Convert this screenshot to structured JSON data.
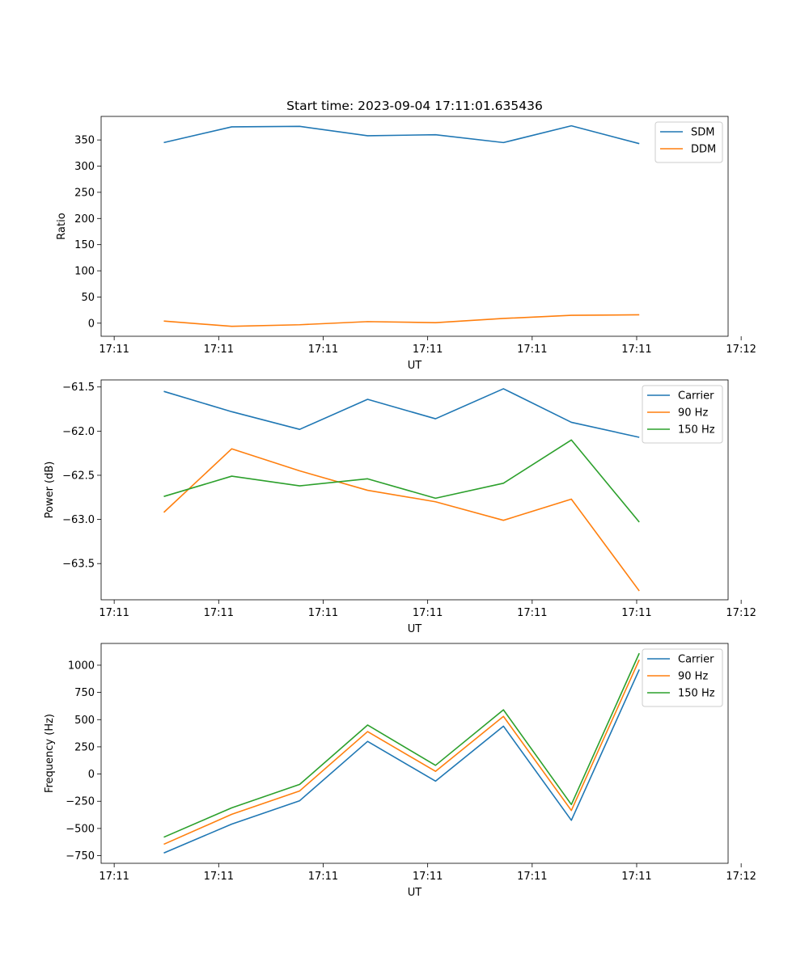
{
  "chart_data": [
    {
      "type": "line",
      "title": "Start time: 2023-09-04 17:11:01.635436",
      "xlabel": "UT",
      "ylabel": "Ratio",
      "xlim": [
        -0.25,
        5.75
      ],
      "x_ticks": [
        {
          "value": -0.125,
          "label": "17:11"
        },
        {
          "value": 0.875,
          "label": "17:11"
        },
        {
          "value": 1.875,
          "label": "17:11"
        },
        {
          "value": 2.875,
          "label": "17:11"
        },
        {
          "value": 3.875,
          "label": "17:11"
        },
        {
          "value": 4.875,
          "label": "17:11"
        },
        {
          "value": 5.875,
          "label": "17:12"
        }
      ],
      "ylim": [
        -25,
        395
      ],
      "y_ticks": [
        0,
        50,
        100,
        150,
        200,
        250,
        300,
        350
      ],
      "x": [
        0.35,
        1.0,
        1.65,
        2.3,
        2.95,
        3.6,
        4.25,
        4.9
      ],
      "series": [
        {
          "name": "SDM",
          "color": "#1f77b4",
          "values": [
            345,
            375,
            376,
            358,
            360,
            345,
            377,
            343
          ]
        },
        {
          "name": "DDM",
          "color": "#ff7f0e",
          "values": [
            4,
            -6,
            -3,
            3,
            1,
            9,
            15,
            16
          ]
        }
      ],
      "legend": "top-right"
    },
    {
      "type": "line",
      "title": "",
      "xlabel": "UT",
      "ylabel": "Power (dB)",
      "xlim": [
        -0.25,
        5.75
      ],
      "x_ticks": [
        {
          "value": -0.125,
          "label": "17:11"
        },
        {
          "value": 0.875,
          "label": "17:11"
        },
        {
          "value": 1.875,
          "label": "17:11"
        },
        {
          "value": 2.875,
          "label": "17:11"
        },
        {
          "value": 3.875,
          "label": "17:11"
        },
        {
          "value": 4.875,
          "label": "17:11"
        },
        {
          "value": 5.875,
          "label": "17:12"
        }
      ],
      "ylim": [
        -63.91,
        -61.42
      ],
      "y_ticks": [
        -63.5,
        -63.0,
        -62.5,
        -62.0,
        -61.5
      ],
      "y_tick_labels": [
        "−63.5",
        "−63.0",
        "−62.5",
        "−62.0",
        "−61.5"
      ],
      "x": [
        0.35,
        1.0,
        1.65,
        2.3,
        2.95,
        3.6,
        4.25,
        4.9
      ],
      "series": [
        {
          "name": "Carrier",
          "color": "#1f77b4",
          "values": [
            -61.55,
            -61.78,
            -61.98,
            -61.64,
            -61.86,
            -61.52,
            -61.9,
            -62.07
          ]
        },
        {
          "name": "90 Hz",
          "color": "#ff7f0e",
          "values": [
            -62.92,
            -62.2,
            -62.45,
            -62.67,
            -62.8,
            -63.01,
            -62.77,
            -63.81
          ]
        },
        {
          "name": "150 Hz",
          "color": "#2ca02c",
          "values": [
            -62.74,
            -62.51,
            -62.62,
            -62.54,
            -62.76,
            -62.59,
            -62.1,
            -63.03
          ]
        }
      ],
      "legend": "top-right"
    },
    {
      "type": "line",
      "title": "",
      "xlabel": "UT",
      "ylabel": "Frequency (Hz)",
      "xlim": [
        -0.25,
        5.75
      ],
      "x_ticks": [
        {
          "value": -0.125,
          "label": "17:11"
        },
        {
          "value": 0.875,
          "label": "17:11"
        },
        {
          "value": 1.875,
          "label": "17:11"
        },
        {
          "value": 2.875,
          "label": "17:11"
        },
        {
          "value": 3.875,
          "label": "17:11"
        },
        {
          "value": 4.875,
          "label": "17:11"
        },
        {
          "value": 5.875,
          "label": "17:12"
        }
      ],
      "ylim": [
        -820,
        1200
      ],
      "y_ticks": [
        -750,
        -500,
        -250,
        0,
        250,
        500,
        750,
        1000
      ],
      "y_tick_labels": [
        "−750",
        "−500",
        "−250",
        "0",
        "250",
        "500",
        "750",
        "1000"
      ],
      "x": [
        0.35,
        1.0,
        1.65,
        2.3,
        2.95,
        3.6,
        4.25,
        4.9
      ],
      "series": [
        {
          "name": "Carrier",
          "color": "#1f77b4",
          "values": [
            -725,
            -460,
            -245,
            300,
            -65,
            440,
            -425,
            960
          ]
        },
        {
          "name": "90 Hz",
          "color": "#ff7f0e",
          "values": [
            -645,
            -370,
            -155,
            390,
            25,
            530,
            -335,
            1050
          ]
        },
        {
          "name": "150 Hz",
          "color": "#2ca02c",
          "values": [
            -580,
            -310,
            -95,
            450,
            80,
            590,
            -280,
            1110
          ]
        }
      ],
      "legend": "top-right"
    }
  ]
}
